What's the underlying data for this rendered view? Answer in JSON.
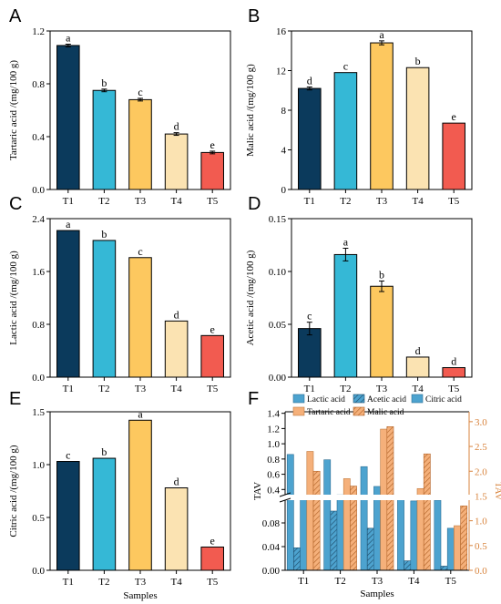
{
  "colors": {
    "T1": "#0b3a5c",
    "T2": "#35b8d6",
    "T3": "#fdc85f",
    "T4": "#fbe3b2",
    "T5": "#f25b50",
    "lactic": "#4da3cf",
    "tartaric": "#f5b07a",
    "axis_right": "#d8833c"
  },
  "chart_data": [
    {
      "panel": "A",
      "type": "bar",
      "categories": [
        "T1",
        "T2",
        "T3",
        "T4",
        "T5"
      ],
      "values": [
        1.09,
        0.75,
        0.68,
        0.42,
        0.28
      ],
      "errors": [
        0.01,
        0.01,
        0.01,
        0.01,
        0.01
      ],
      "letters": [
        "a",
        "b",
        "c",
        "d",
        "e"
      ],
      "ylabel": "Tartaric acid /(mg/100 g)",
      "xlabel": "",
      "ylim": [
        0,
        1.2
      ],
      "yticks": [
        "0.0",
        "0.4",
        "0.8",
        "1.2"
      ]
    },
    {
      "panel": "B",
      "type": "bar",
      "categories": [
        "T1",
        "T2",
        "T3",
        "T4",
        "T5"
      ],
      "values": [
        10.2,
        11.8,
        14.8,
        12.3,
        6.7
      ],
      "errors": [
        0.15,
        0.0,
        0.2,
        0.0,
        0.0
      ],
      "letters": [
        "d",
        "c",
        "a",
        "b",
        "e"
      ],
      "ylabel": "Malic acid /(mg/100 g)",
      "xlabel": "",
      "ylim": [
        0,
        16
      ],
      "yticks": [
        "0",
        "4",
        "8",
        "12",
        "16"
      ]
    },
    {
      "panel": "C",
      "type": "bar",
      "categories": [
        "T1",
        "T2",
        "T3",
        "T4",
        "T5"
      ],
      "values": [
        2.22,
        2.07,
        1.81,
        0.85,
        0.63
      ],
      "errors": [
        0,
        0,
        0,
        0,
        0
      ],
      "letters": [
        "a",
        "b",
        "c",
        "d",
        "e"
      ],
      "ylabel": "Lactic acid /(mg/100 g)",
      "xlabel": "",
      "ylim": [
        0,
        2.4
      ],
      "yticks": [
        "0.0",
        "0.8",
        "1.6",
        "2.4"
      ]
    },
    {
      "panel": "D",
      "type": "bar",
      "categories": [
        "T1",
        "T2",
        "T3",
        "T4",
        "T5"
      ],
      "values": [
        0.046,
        0.116,
        0.086,
        0.019,
        0.009
      ],
      "errors": [
        0.006,
        0.006,
        0.005,
        0,
        0
      ],
      "letters": [
        "c",
        "a",
        "b",
        "d",
        "d"
      ],
      "ylabel": "Acetic acid /(mg/100 g)",
      "xlabel": "",
      "ylim": [
        0,
        0.15
      ],
      "yticks": [
        "0.00",
        "0.05",
        "0.10",
        "0.15"
      ]
    },
    {
      "panel": "E",
      "type": "bar",
      "categories": [
        "T1",
        "T2",
        "T3",
        "T4",
        "T5"
      ],
      "values": [
        1.03,
        1.06,
        1.42,
        0.78,
        0.22
      ],
      "errors": [
        0,
        0,
        0,
        0,
        0
      ],
      "letters": [
        "c",
        "b",
        "a",
        "d",
        "e"
      ],
      "ylabel": "Citric acid /(mg/100 g)",
      "xlabel": "Samples",
      "ylim": [
        0,
        1.5
      ],
      "yticks": [
        "0.0",
        "0.5",
        "1.0",
        "1.5"
      ]
    },
    {
      "panel": "F",
      "type": "bar",
      "categories": [
        "T1",
        "T2",
        "T3",
        "T4",
        "T5"
      ],
      "xlabel": "Samples",
      "ylabel_left": "TAV",
      "ylabel_right": "TAV",
      "left_axis_break": true,
      "left_lower_ticks": [
        "0.00",
        "0.04",
        "0.08"
      ],
      "left_upper_ticks": [
        "0.4",
        "0.6",
        "0.8",
        "1.0",
        "1.2",
        "1.4"
      ],
      "right_ticks": [
        "0.0",
        "0.5",
        "1.0",
        "1.5",
        "2.0",
        "2.5",
        "3.0"
      ],
      "left_lower_range": [
        0,
        0.12
      ],
      "left_upper_range": [
        0.32,
        1.42
      ],
      "right_range": [
        0,
        3.2
      ],
      "legend": [
        "Lactic acid",
        "Acetic acid",
        "Citric acid",
        "Tartaric acid",
        "Malic acid"
      ],
      "series": [
        {
          "name": "Lactic acid",
          "axis": "left",
          "values": [
            0.86,
            0.79,
            0.7,
            0.32,
            0.26
          ]
        },
        {
          "name": "Acetic acid",
          "axis": "left",
          "values": [
            0.038,
            0.1,
            0.071,
            0.016,
            0.007
          ]
        },
        {
          "name": "Citric acid",
          "axis": "left",
          "values": [
            0.32,
            0.33,
            0.44,
            0.25,
            0.071
          ]
        },
        {
          "name": "Tartaric acid",
          "axis": "right",
          "values": [
            2.4,
            1.85,
            2.85,
            1.65,
            0.9
          ]
        },
        {
          "name": "Malic acid",
          "axis": "right",
          "values": [
            2.0,
            1.7,
            2.9,
            2.35,
            1.3
          ]
        }
      ]
    }
  ]
}
